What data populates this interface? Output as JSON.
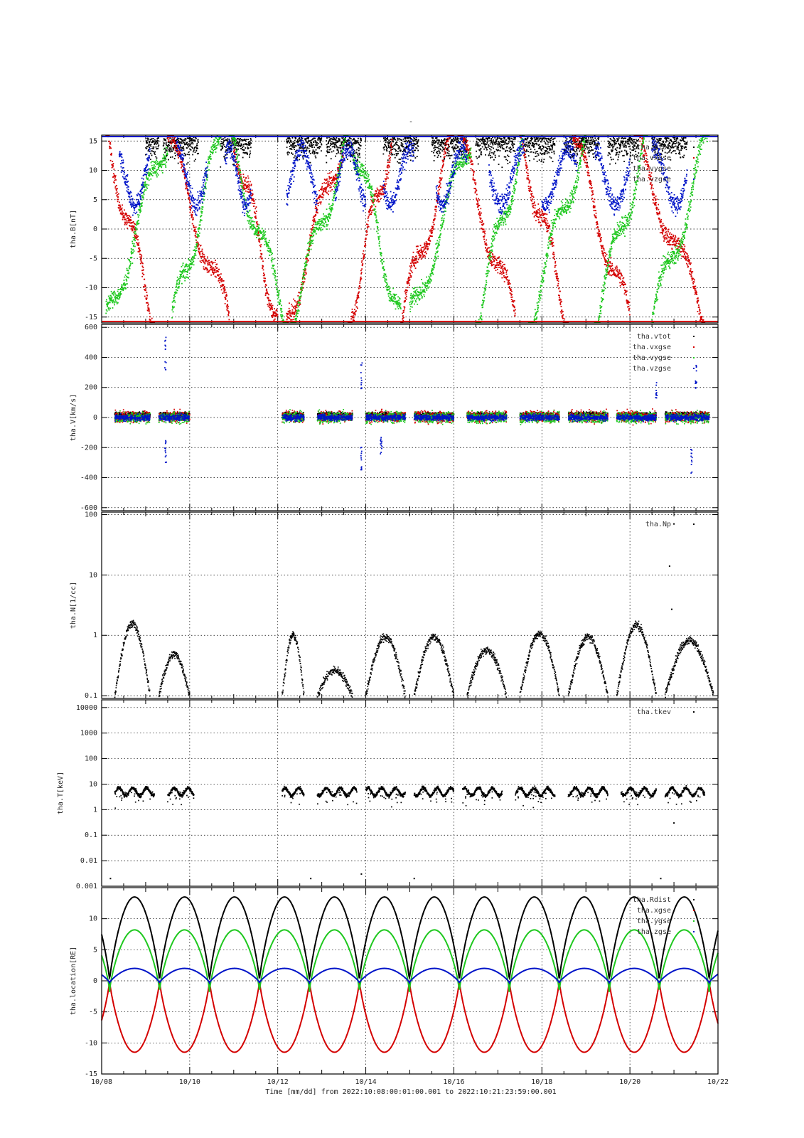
{
  "header": {
    "title": "-"
  },
  "footer": {
    "xaxis_caption": "Time [mm/dd]  from 2022:10:08:00:01:00.001  to  2022:10:21:23:59:00.001",
    "xtick_labels": [
      "10/08",
      "10/10",
      "10/12",
      "10/14",
      "10/16",
      "10/18",
      "10/20",
      "10/22"
    ]
  },
  "colors": {
    "black": "#000000",
    "red": "#d40000",
    "green": "#1ec81e",
    "blue": "#0014c8"
  },
  "chart_data": [
    {
      "id": "B",
      "type": "scatter",
      "ylabel": "tha.B[nT]",
      "ylim": [
        -16,
        16
      ],
      "yscale": "linear",
      "yticks": [
        15,
        10,
        5,
        0,
        -5,
        -10,
        -15
      ],
      "ytick_labels": [
        "15",
        "10",
        "5",
        "0",
        "-5",
        "-10",
        "-15"
      ],
      "xlim_days": [
        0,
        14
      ],
      "grid": true,
      "legend_position": "top-right",
      "series": [
        {
          "name": "tha.btot",
          "color": "black",
          "shape": "sat_top",
          "segments": [
            [
              1.0,
              1.3
            ],
            [
              1.4,
              2.2
            ],
            [
              2.7,
              3.4
            ],
            [
              4.2,
              5.0
            ],
            [
              5.1,
              5.9
            ],
            [
              6.4,
              7.2
            ],
            [
              7.5,
              8.3
            ],
            [
              8.5,
              9.4
            ],
            [
              9.6,
              10.3
            ],
            [
              10.5,
              11.3
            ],
            [
              11.5,
              12.2
            ],
            [
              12.5,
              13.3
            ]
          ]
        },
        {
          "name": "tha.vxgse",
          "color": "red",
          "shape": "oscillating",
          "segments": [
            [
              0.1,
              1.2
            ],
            [
              1.5,
              2.9
            ],
            [
              3.0,
              4.0
            ],
            [
              4.2,
              5.5
            ],
            [
              5.6,
              6.6
            ],
            [
              6.8,
              8.0
            ],
            [
              8.1,
              9.4
            ],
            [
              9.5,
              10.6
            ],
            [
              10.7,
              12.0
            ],
            [
              12.1,
              13.7
            ]
          ]
        },
        {
          "name": "tha.vygse",
          "color": "green",
          "shape": "oscillating",
          "segments": [
            [
              0.1,
              1.5
            ],
            [
              1.6,
              2.7
            ],
            [
              2.9,
              4.2
            ],
            [
              4.3,
              5.6
            ],
            [
              5.7,
              6.8
            ],
            [
              7.0,
              8.4
            ],
            [
              8.5,
              9.6
            ],
            [
              9.7,
              11.0
            ],
            [
              11.2,
              12.4
            ],
            [
              12.5,
              13.8
            ]
          ]
        },
        {
          "name": "tha.vzgse",
          "color": "blue",
          "shape": "upper_band",
          "segments": [
            [
              0.4,
              1.1
            ],
            [
              1.7,
              2.4
            ],
            [
              2.8,
              3.4
            ],
            [
              4.2,
              4.9
            ],
            [
              5.3,
              6.0
            ],
            [
              6.4,
              7.1
            ],
            [
              7.6,
              8.3
            ],
            [
              8.8,
              9.6
            ],
            [
              10.0,
              10.8
            ],
            [
              11.2,
              12.0
            ],
            [
              12.5,
              13.3
            ]
          ]
        }
      ]
    },
    {
      "id": "V",
      "type": "scatter",
      "ylabel": "tha.V[km/s]",
      "ylim": [
        -620,
        620
      ],
      "yscale": "linear",
      "yticks": [
        600,
        400,
        200,
        0,
        -200,
        -400,
        -600
      ],
      "ytick_labels": [
        "600",
        "400",
        "200",
        "0",
        "-200",
        "-400",
        "-600"
      ],
      "xlim_days": [
        0,
        14
      ],
      "grid": true,
      "legend_position": "top-right",
      "data_segments": [
        [
          0.3,
          1.1
        ],
        [
          1.3,
          2.0
        ],
        [
          4.1,
          4.6
        ],
        [
          4.9,
          5.7
        ],
        [
          6.0,
          6.9
        ],
        [
          7.1,
          8.0
        ],
        [
          8.3,
          9.2
        ],
        [
          9.5,
          10.4
        ],
        [
          10.6,
          11.5
        ],
        [
          11.7,
          12.6
        ],
        [
          12.8,
          13.8
        ]
      ],
      "series": [
        {
          "name": "tha.vtot",
          "color": "black",
          "center": 20,
          "spread": 25
        },
        {
          "name": "tha.vxgse",
          "color": "red",
          "center": 5,
          "spread": 60
        },
        {
          "name": "tha.vygse",
          "color": "green",
          "center": 0,
          "spread": 60
        },
        {
          "name": "tha.vzgse",
          "color": "blue",
          "center": 0,
          "spread": 35
        }
      ],
      "spikes": [
        [
          1.45,
          540
        ],
        [
          1.45,
          -300
        ],
        [
          5.9,
          380
        ],
        [
          5.9,
          -360
        ],
        [
          6.35,
          -260
        ],
        [
          12.6,
          250
        ],
        [
          13.4,
          -380
        ],
        [
          13.5,
          350
        ]
      ]
    },
    {
      "id": "N",
      "type": "scatter",
      "ylabel": "tha.N[1/cc]",
      "ylim": [
        0.09,
        110
      ],
      "yscale": "log",
      "yticks": [
        100,
        10,
        1,
        0.1
      ],
      "ytick_labels": [
        "100",
        "10",
        "1",
        "0.1"
      ],
      "xlim_days": [
        0,
        14
      ],
      "grid": true,
      "legend_position": "top-right",
      "series": [
        {
          "name": "tha.Np",
          "color": "black",
          "segments": [
            [
              0.3,
              1.1
            ],
            [
              1.3,
              2.0
            ],
            [
              4.1,
              4.6
            ],
            [
              4.9,
              5.7
            ],
            [
              6.0,
              6.9
            ],
            [
              7.1,
              8.0
            ],
            [
              8.3,
              9.2
            ],
            [
              9.5,
              10.4
            ],
            [
              10.6,
              11.5
            ],
            [
              11.7,
              12.6
            ],
            [
              12.8,
              13.9
            ]
          ]
        }
      ],
      "spikes": [
        [
          12.9,
          14
        ],
        [
          12.95,
          2.7
        ],
        [
          13.0,
          70
        ]
      ]
    },
    {
      "id": "T",
      "type": "scatter",
      "ylabel": "tha.T[keV]",
      "ylim": [
        0.001,
        20000
      ],
      "yscale": "log",
      "yticks": [
        10000,
        1000,
        100,
        10,
        1,
        0.1,
        0.01,
        0.001
      ],
      "ytick_labels": [
        "10000",
        "1000",
        "100",
        "10",
        "1",
        "0.1",
        "0.01",
        "0.001"
      ],
      "xlim_days": [
        0,
        14
      ],
      "grid": true,
      "legend_position": "top-right",
      "series": [
        {
          "name": "tha.tkev",
          "color": "black",
          "level_kev": 5,
          "segments": [
            [
              0.3,
              1.2
            ],
            [
              1.5,
              2.1
            ],
            [
              4.1,
              4.6
            ],
            [
              4.9,
              5.8
            ],
            [
              6.0,
              6.9
            ],
            [
              7.1,
              8.0
            ],
            [
              8.2,
              9.1
            ],
            [
              9.4,
              10.3
            ],
            [
              10.6,
              11.5
            ],
            [
              11.8,
              12.6
            ],
            [
              12.8,
              13.7
            ]
          ]
        }
      ],
      "spikes": [
        [
          0.2,
          0.002
        ],
        [
          4.75,
          0.002
        ],
        [
          5.9,
          0.003
        ],
        [
          7.1,
          0.002
        ],
        [
          12.7,
          0.002
        ],
        [
          13.0,
          0.3
        ]
      ]
    },
    {
      "id": "location",
      "type": "line",
      "ylabel": "tha.location[RE]",
      "ylim": [
        -15,
        15
      ],
      "yscale": "linear",
      "yticks": [
        10,
        5,
        0,
        -5,
        -10,
        -15
      ],
      "ytick_labels": [
        "10",
        "5",
        "0",
        "-5",
        "-10",
        "-15"
      ],
      "xlim_days": [
        0,
        14
      ],
      "grid": true,
      "legend_position": "top-right",
      "orbit_period_days": 1.135,
      "first_perigee_day": 0.18,
      "series": [
        {
          "name": "tha.Rdist",
          "color": "black",
          "amplitude": 13.5
        },
        {
          "name": "tha.xgse",
          "color": "red",
          "amplitude": -11.5
        },
        {
          "name": "tha.ygse",
          "color": "green",
          "amplitude": 8.2
        },
        {
          "name": "tha.zgse",
          "color": "blue",
          "amplitude": 2.3
        }
      ]
    }
  ]
}
